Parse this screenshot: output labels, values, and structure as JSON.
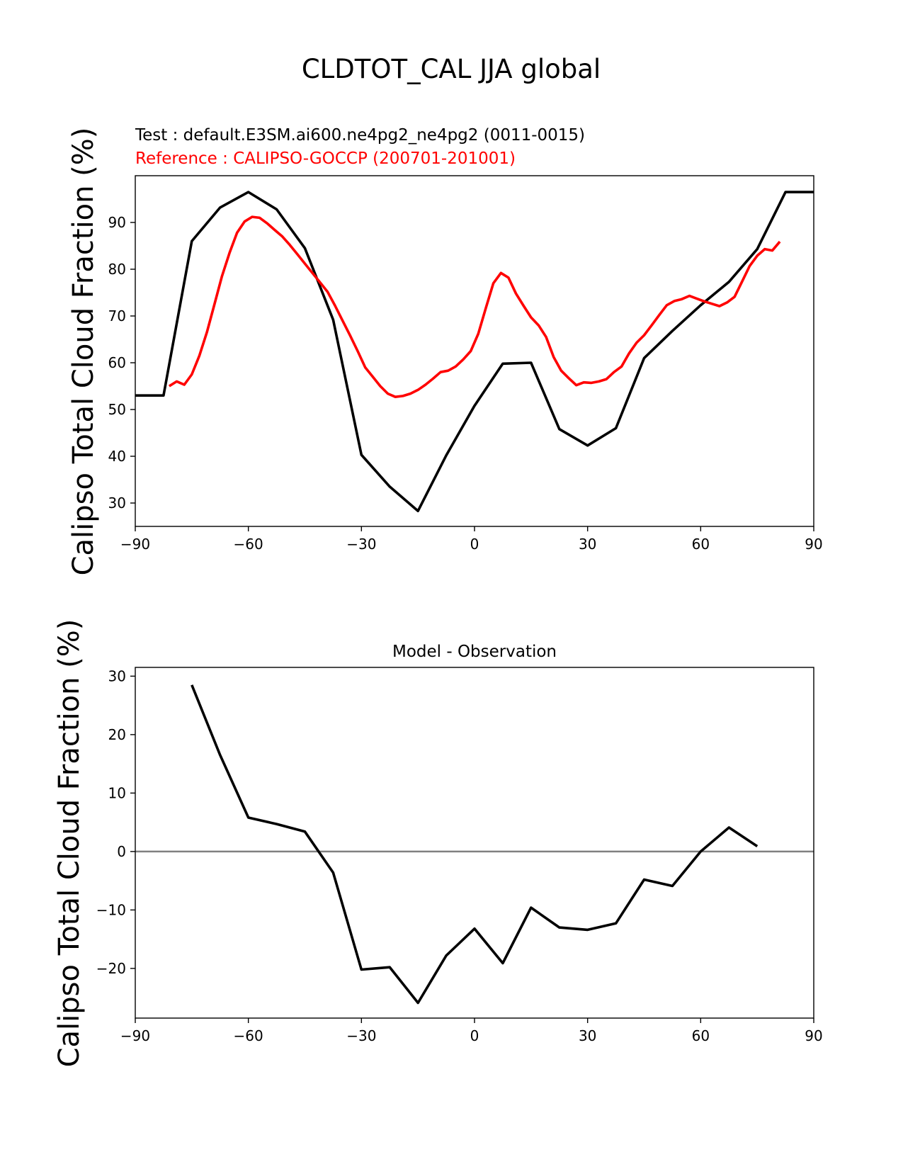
{
  "figure_title": "CLDTOT_CAL JJA global",
  "colors": {
    "test": "#000000",
    "reference": "#ff0000",
    "zero_line": "#808080"
  },
  "chart_data": [
    {
      "type": "line",
      "test_label": "Test : default.E3SM.ai600.ne4pg2_ne4pg2 (0011-0015)",
      "reference_label": "Reference : CALIPSO-GOCCP (200701-201001)",
      "ylabel": "Calipso Total Cloud Fraction (%)",
      "xlim": [
        -90,
        90
      ],
      "ylim": [
        25,
        100
      ],
      "xticks": [
        -90,
        -60,
        -30,
        0,
        30,
        60,
        90
      ],
      "xtick_labels": [
        "−90",
        "−60",
        "−30",
        "0",
        "30",
        "60",
        "90"
      ],
      "yticks": [
        30,
        40,
        50,
        60,
        70,
        80,
        90
      ],
      "ytick_labels": [
        "30",
        "40",
        "50",
        "60",
        "70",
        "80",
        "90"
      ],
      "series": [
        {
          "name": "test",
          "x": [
            -90,
            -82.5,
            -75,
            -67.5,
            -60,
            -52.5,
            -45,
            -37.5,
            -30,
            -22.5,
            -15,
            -7.5,
            0,
            7.5,
            15,
            22.5,
            30,
            37.5,
            45,
            52.5,
            60,
            67.5,
            75,
            82.5,
            90
          ],
          "y": [
            53.0,
            53.0,
            86.0,
            93.2,
            96.5,
            92.8,
            84.5,
            69.2,
            40.3,
            33.5,
            28.3,
            40.2,
            50.8,
            59.8,
            60.0,
            45.8,
            42.3,
            46.0,
            61.0,
            66.8,
            72.3,
            77.3,
            84.3,
            96.5,
            96.5
          ]
        },
        {
          "name": "reference",
          "x": [
            -81,
            -79,
            -77,
            -75,
            -73,
            -71,
            -69,
            -67,
            -65,
            -63,
            -61,
            -59,
            -57,
            -55,
            -53,
            -51,
            -49,
            -47,
            -45,
            -43,
            -41,
            -39,
            -37,
            -35,
            -33,
            -31,
            -29,
            -27,
            -25,
            -23,
            -21,
            -19,
            -17,
            -15,
            -13,
            -11,
            -9,
            -7,
            -5,
            -3,
            -1,
            1,
            3,
            5,
            7,
            9,
            11,
            13,
            15,
            17,
            19,
            21,
            23,
            25,
            27,
            29,
            31,
            33,
            35,
            37,
            39,
            41,
            43,
            45,
            47,
            49,
            51,
            53,
            55,
            57,
            59,
            61,
            63,
            65,
            67,
            69,
            71,
            73,
            75,
            77,
            79,
            81
          ],
          "y": [
            55.0,
            56.0,
            55.3,
            57.5,
            61.5,
            66.5,
            72.5,
            78.5,
            83.5,
            87.8,
            90.2,
            91.2,
            91.0,
            89.8,
            88.4,
            87.0,
            85.2,
            83.2,
            81.2,
            79.2,
            77.2,
            75.2,
            72.2,
            69.0,
            65.8,
            62.5,
            59.0,
            57.0,
            55.0,
            53.4,
            52.7,
            52.9,
            53.4,
            54.2,
            55.3,
            56.6,
            58.0,
            58.3,
            59.2,
            60.7,
            62.5,
            66.2,
            71.7,
            77.0,
            79.2,
            78.2,
            74.8,
            72.2,
            69.7,
            68.0,
            65.5,
            61.2,
            58.3,
            56.7,
            55.2,
            55.8,
            55.7,
            56.0,
            56.5,
            58.0,
            59.2,
            62.0,
            64.3,
            65.9,
            68.0,
            70.2,
            72.3,
            73.2,
            73.6,
            74.3,
            73.7,
            73.1,
            72.6,
            72.1,
            72.9,
            74.1,
            77.4,
            80.7,
            82.9,
            84.3,
            84.0,
            85.9
          ]
        }
      ]
    },
    {
      "type": "line",
      "title": "Model - Observation",
      "ylabel": "Calipso Total Cloud Fraction (%)",
      "xlim": [
        -90,
        90
      ],
      "ylim": [
        -28.5,
        31.5
      ],
      "xticks": [
        -90,
        -60,
        -30,
        0,
        30,
        60,
        90
      ],
      "xtick_labels": [
        "−90",
        "−60",
        "−30",
        "0",
        "30",
        "60",
        "90"
      ],
      "yticks": [
        -20,
        -10,
        0,
        10,
        20,
        30
      ],
      "ytick_labels": [
        "−20",
        "−10",
        "0",
        "10",
        "20",
        "30"
      ],
      "zero_line": 0,
      "series": [
        {
          "name": "difference",
          "x": [
            -75,
            -67.5,
            -60,
            -52.5,
            -45,
            -37.5,
            -30,
            -22.5,
            -15,
            -7.5,
            0,
            7.5,
            15,
            22.5,
            30,
            37.5,
            45,
            52.5,
            60,
            67.5,
            75
          ],
          "y": [
            28.5,
            16.5,
            5.8,
            4.7,
            3.4,
            -3.6,
            -20.2,
            -19.8,
            -25.9,
            -17.8,
            -13.2,
            -19.1,
            -9.6,
            -13.0,
            -13.4,
            -12.3,
            -4.8,
            -5.9,
            0.0,
            4.1,
            0.9
          ]
        }
      ]
    }
  ]
}
